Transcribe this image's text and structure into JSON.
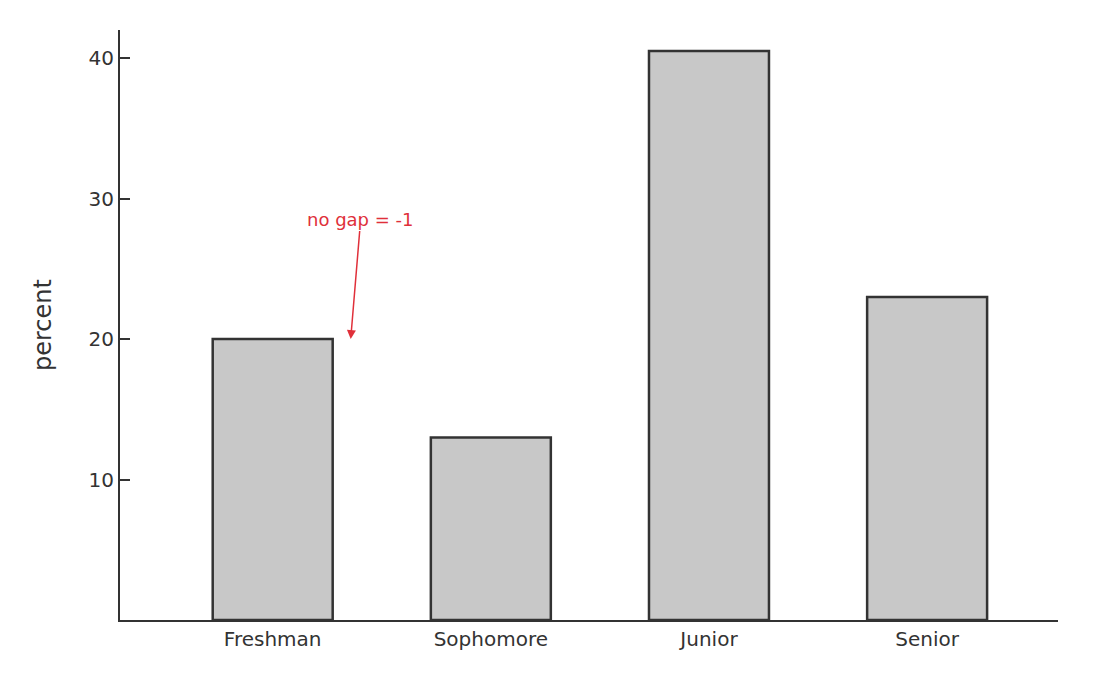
{
  "chart_data": {
    "type": "bar",
    "y_label": "percent",
    "categories": [
      "Freshman",
      "Sophomore",
      "Junior",
      "Senior"
    ],
    "values": [
      20,
      13,
      40.5,
      23
    ],
    "color": "#c8c8c8",
    "ylim": [
      0,
      42
    ],
    "yticks": [
      10,
      20,
      30,
      40
    ],
    "grid": false,
    "annotations": [
      {
        "text": "no gap = -1",
        "category": "Freshman"
      }
    ]
  }
}
